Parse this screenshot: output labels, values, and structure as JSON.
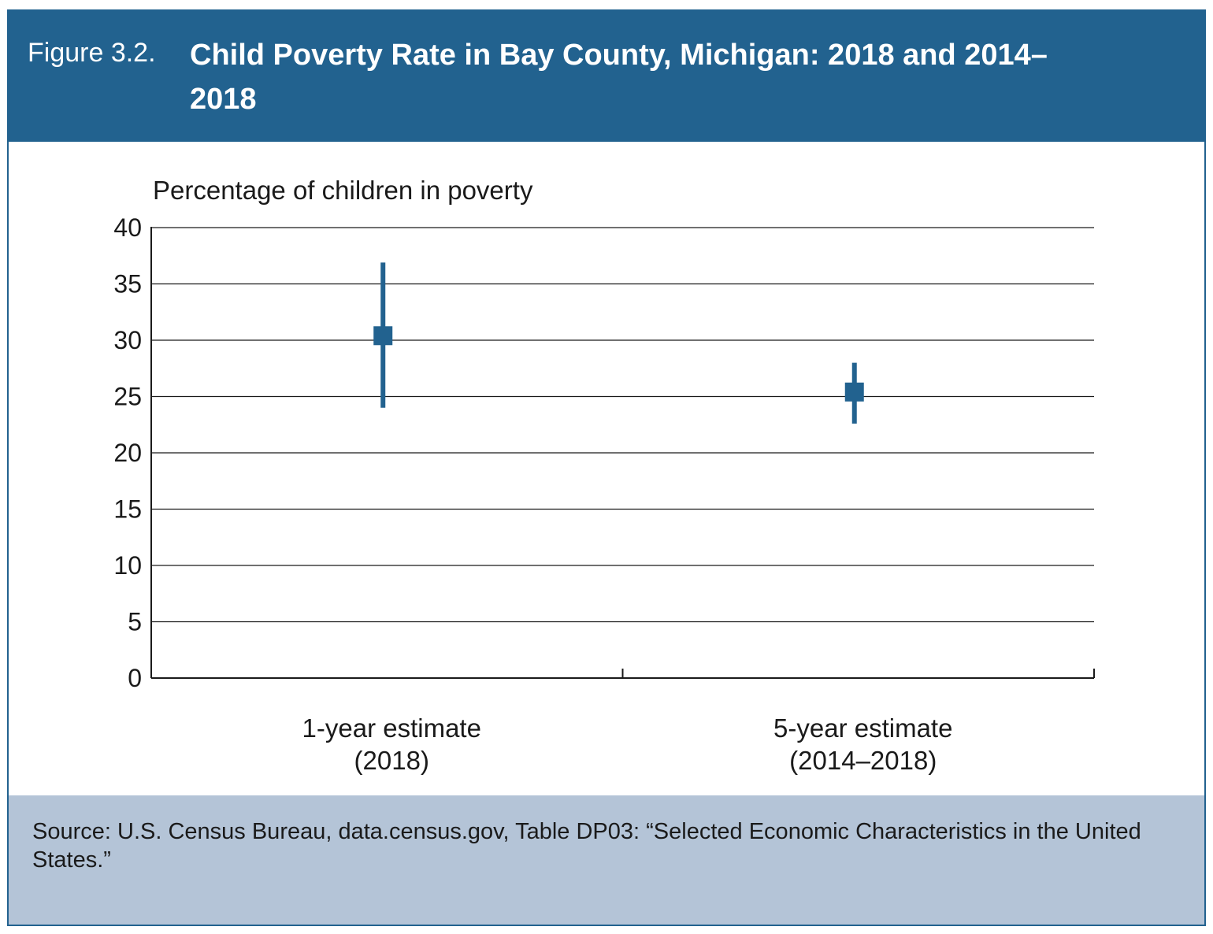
{
  "figure": {
    "label": "Figure 3.2.",
    "title": "Child Poverty Rate in Bay County, Michigan: 2018 and 2014–2018"
  },
  "colors": {
    "header_bg": "#22628f",
    "marker": "#22628f",
    "footer_bg": "#b4c4d7"
  },
  "chart_data": {
    "type": "errorbar",
    "ylabel": "Percentage of children in poverty",
    "ylim": [
      0,
      40
    ],
    "yticks": [
      "0",
      "5",
      "10",
      "15",
      "20",
      "25",
      "30",
      "35",
      "40"
    ],
    "grid": true,
    "categories": [
      {
        "line1": "1-year estimate",
        "line2": "(2018)"
      },
      {
        "line1": "5-year estimate",
        "line2": "(2014–2018)"
      }
    ],
    "points": [
      {
        "estimate": 30.4,
        "lower": 24.0,
        "upper": 36.9
      },
      {
        "estimate": 25.4,
        "lower": 22.6,
        "upper": 28.0
      }
    ]
  },
  "source": "Source: U.S. Census Bureau, data.census.gov, Table DP03: “Selected Economic Characteristics in the United States.”"
}
